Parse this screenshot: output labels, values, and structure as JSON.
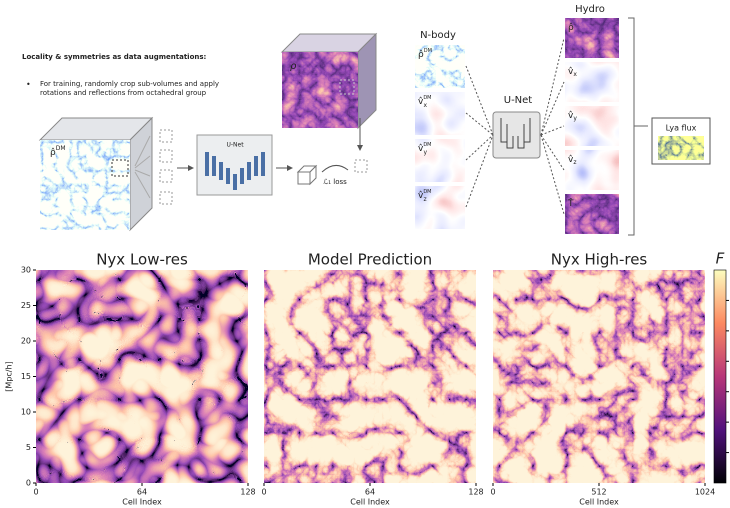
{
  "augmentation": {
    "heading": "Locality & symmetries as data augmentations:",
    "bullet": "For training, randomly crop sub-volumes and apply rotations and reflections from octahedral group",
    "input_symbol": "ρ̂",
    "input_sup": "DM",
    "unet": "U-Net",
    "target_symbol": "ρ",
    "loss": "ℒ₁ loss"
  },
  "pipeline": {
    "nbody_title": "N-body",
    "nbody_fields": [
      {
        "symbol": "ρ̂",
        "sup": "DM"
      },
      {
        "symbol": "v̂",
        "sup": "DM",
        "sub": "x"
      },
      {
        "symbol": "v̂",
        "sup": "DM",
        "sub": "y"
      },
      {
        "symbol": "v̂",
        "sup": "DM",
        "sub": "z"
      }
    ],
    "unet": "U-Net",
    "hydro_title": "Hydro",
    "hydro_fields": [
      {
        "symbol": "ρ̂"
      },
      {
        "symbol": "v̂",
        "sub": "x"
      },
      {
        "symbol": "v̂",
        "sub": "y"
      },
      {
        "symbol": "v̂",
        "sub": "z"
      },
      {
        "symbol": "T̂"
      }
    ],
    "output": "Lya flux"
  },
  "comparison": {
    "ylabel": "[Mpc/h]",
    "yticks": [
      "0",
      "5",
      "10",
      "15",
      "20",
      "25",
      "30"
    ],
    "colorbar_label": "F",
    "panels": [
      {
        "title": "Nyx Low-res",
        "xticks": [
          "0",
          "64",
          "128"
        ],
        "xlabel": "Cell Index"
      },
      {
        "title": "Model Prediction",
        "xticks": [
          "0",
          "64",
          "128"
        ],
        "xlabel": "Cell Index"
      },
      {
        "title": "Nyx High-res",
        "xticks": [
          "0",
          "512",
          "1024"
        ],
        "xlabel": "Cell Index"
      }
    ]
  }
}
